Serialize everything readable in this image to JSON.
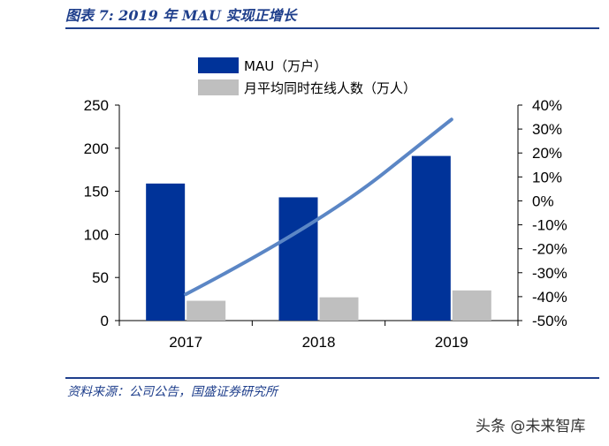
{
  "figure_title": "图表 7:  2019 年 MAU 实现正增长",
  "source": "资料来源：公司公告，国盛证券研究所",
  "watermark": "头条 @未来智库",
  "colors": {
    "mau": "#003399",
    "concurrent": "#bfbfbf",
    "growth_line": "#5b86c5",
    "title": "#1f3f8c"
  },
  "chart_data": {
    "type": "bar",
    "categories": [
      "2017",
      "2018",
      "2019"
    ],
    "series": [
      {
        "name": "MAU（万户）",
        "kind": "bar",
        "axis": "left",
        "values": [
          159,
          143,
          191
        ]
      },
      {
        "name": "月平均同时在线人数（万人）",
        "kind": "bar",
        "axis": "left",
        "values": [
          23,
          27,
          35
        ]
      },
      {
        "name": "",
        "kind": "line",
        "axis": "right",
        "values": [
          -39,
          -10,
          34
        ]
      }
    ],
    "ylim": [
      0,
      250
    ],
    "yticks": [
      "0",
      "50",
      "100",
      "150",
      "200",
      "250"
    ],
    "y2lim": [
      -50,
      40
    ],
    "y2ticks": [
      "-50%",
      "-40%",
      "-30%",
      "-20%",
      "-10%",
      "0%",
      "10%",
      "20%",
      "30%",
      "40%"
    ],
    "legend": [
      "MAU（万户）",
      "月平均同时在线人数（万人）"
    ],
    "legend_position": "top-center",
    "grid": false
  }
}
